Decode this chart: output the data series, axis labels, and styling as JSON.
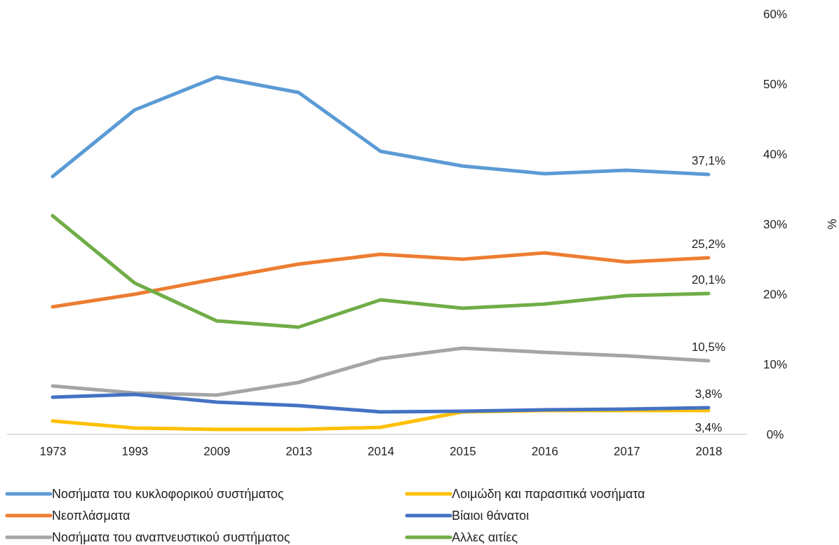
{
  "chart_data": {
    "type": "line",
    "ylabel": "%",
    "categories": [
      "1973",
      "1993",
      "2009",
      "2013",
      "2014",
      "2015",
      "2016",
      "2017",
      "2018"
    ],
    "ylim": [
      0,
      60
    ],
    "yticks": [
      {
        "value": 0,
        "label": "0%"
      },
      {
        "value": 10,
        "label": "10%"
      },
      {
        "value": 20,
        "label": "20%"
      },
      {
        "value": 30,
        "label": "30%"
      },
      {
        "value": 40,
        "label": "40%"
      },
      {
        "value": 50,
        "label": "50%"
      },
      {
        "value": 60,
        "label": "60%"
      }
    ],
    "grid": false,
    "legend": "bottom",
    "marker": "none",
    "line_style": "solid",
    "series": [
      {
        "name": "Νοσήματα του κυκλοφορικού συστήματος",
        "color": "#5b9bd5",
        "values": [
          36.8,
          46.3,
          51.0,
          48.8,
          40.4,
          38.3,
          37.2,
          37.7,
          37.1
        ],
        "value_labels": [
          null,
          null,
          null,
          null,
          null,
          null,
          null,
          null,
          "37,1%"
        ]
      },
      {
        "name": "Νεοπλάσματα",
        "color": "#ed7d31",
        "values": [
          18.2,
          20.0,
          22.2,
          24.3,
          25.7,
          25.0,
          25.9,
          24.6,
          25.2
        ],
        "value_labels": [
          null,
          null,
          null,
          null,
          null,
          null,
          null,
          null,
          "25,2%"
        ]
      },
      {
        "name": "Νοσήματα του αναπνευστικού συστήματος",
        "color": "#a5a5a5",
        "values": [
          6.9,
          5.9,
          5.6,
          7.4,
          10.8,
          12.3,
          11.7,
          11.2,
          10.5
        ],
        "value_labels": [
          null,
          null,
          null,
          null,
          null,
          null,
          null,
          null,
          "10,5%"
        ]
      },
      {
        "name": "Λοιμώδη και παρασιτικά νοσήματα",
        "color": "#ffc000",
        "values": [
          1.9,
          0.9,
          0.7,
          0.7,
          1.0,
          3.2,
          3.4,
          3.4,
          3.4
        ],
        "value_labels": [
          null,
          null,
          null,
          null,
          null,
          null,
          null,
          null,
          "3,4%"
        ]
      },
      {
        "name": "Βίαιοι θάνατοι",
        "color": "#4472c4",
        "values": [
          5.3,
          5.7,
          4.6,
          4.1,
          3.2,
          3.3,
          3.5,
          3.6,
          3.8
        ],
        "value_labels": [
          null,
          null,
          null,
          null,
          null,
          null,
          null,
          null,
          "3,8%"
        ]
      },
      {
        "name": "Αλλες αιτίες",
        "color": "#70ad47",
        "values": [
          31.2,
          21.6,
          16.2,
          15.3,
          19.2,
          18.0,
          18.6,
          19.8,
          20.1
        ],
        "value_labels": [
          null,
          null,
          null,
          null,
          null,
          null,
          null,
          null,
          "20,1%"
        ]
      }
    ]
  }
}
